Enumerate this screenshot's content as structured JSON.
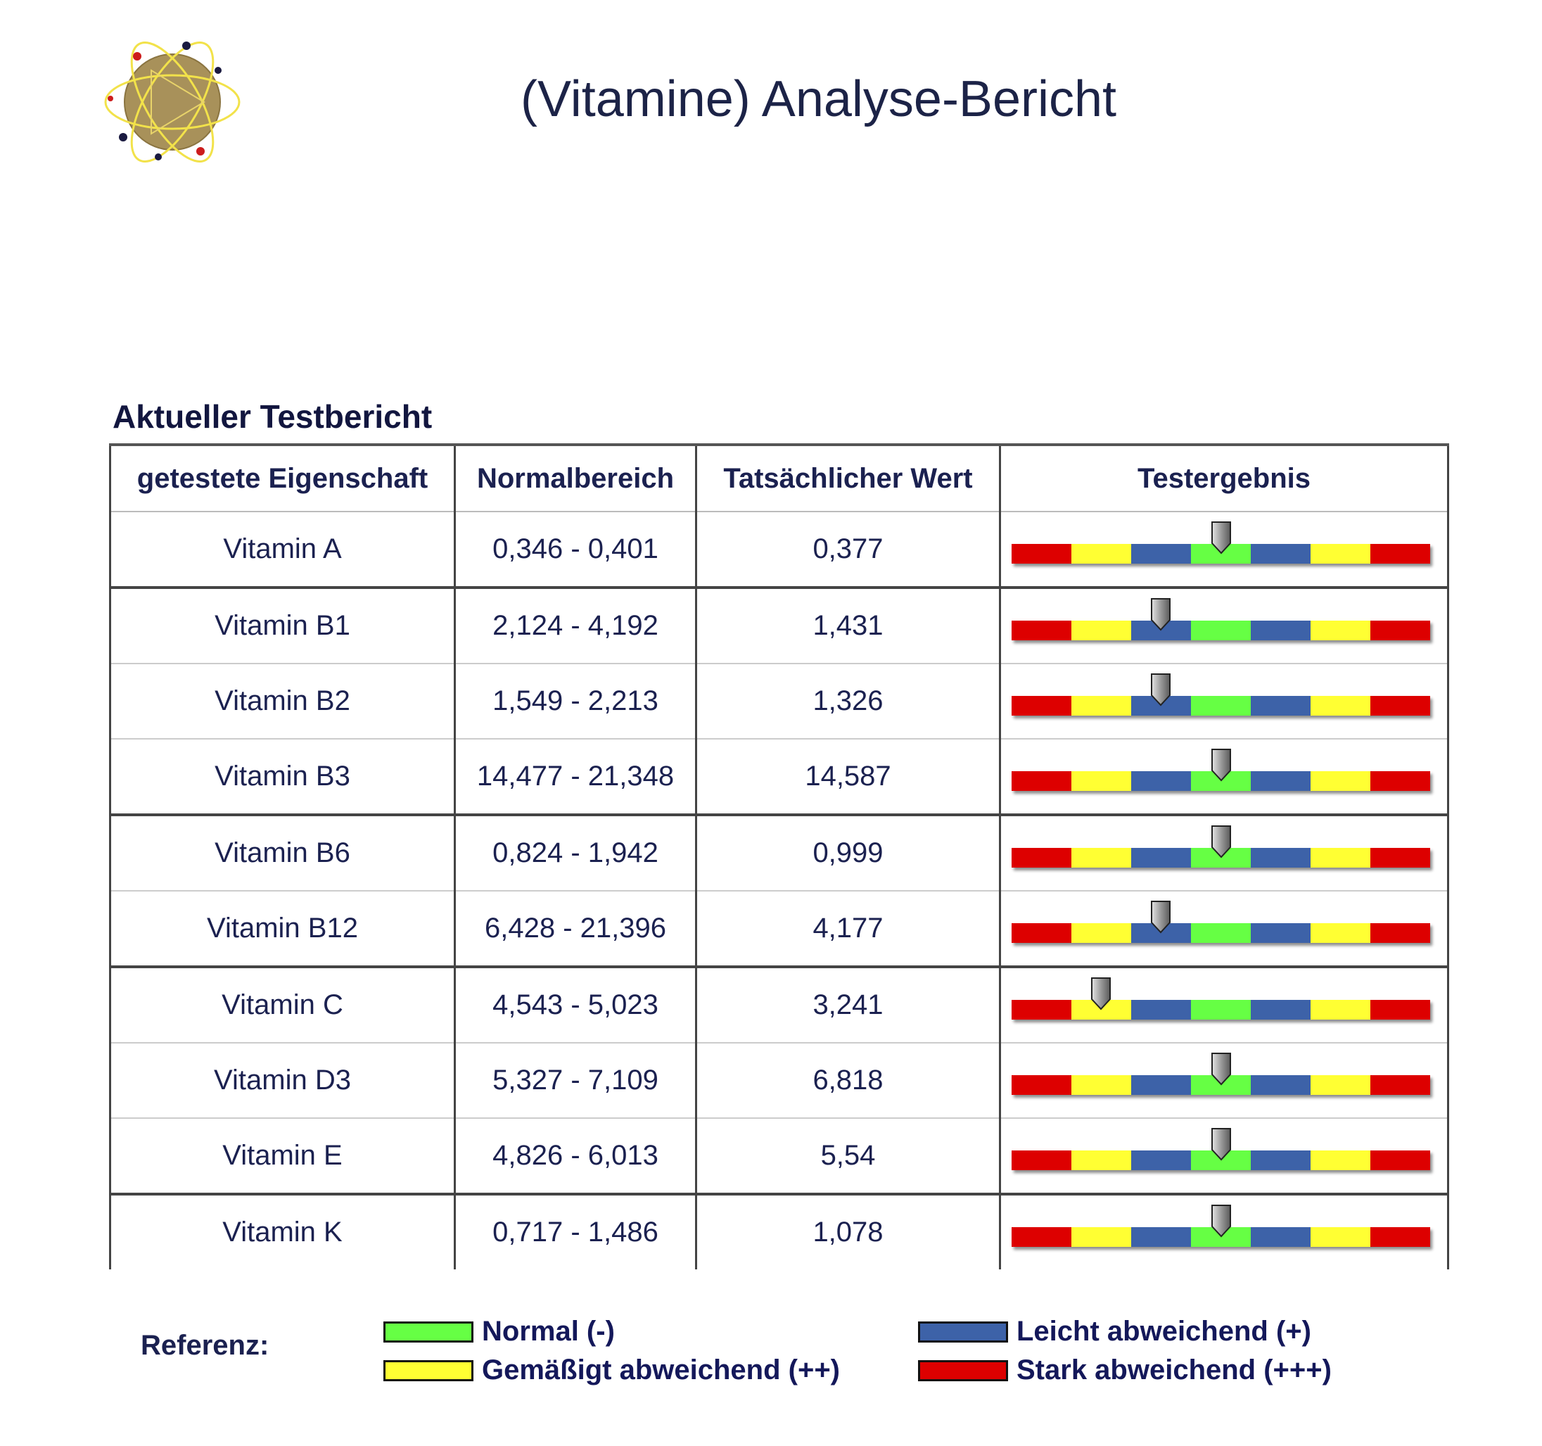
{
  "header": {
    "title": "(Vitamine) Analyse-Bericht"
  },
  "logo": {
    "icon": "atom-logo-icon"
  },
  "section": {
    "title": "Aktueller Testbericht"
  },
  "table": {
    "columns": [
      "getestete Eigenschaft",
      "Normalbereich",
      "Tatsächlicher Wert",
      "Testergebnis"
    ],
    "rows": [
      {
        "name": "Vitamin A",
        "range": "0,346 - 0,401",
        "value": "0,377",
        "level": "Normal (-)"
      },
      {
        "name": "Vitamin B1",
        "range": "2,124 - 4,192",
        "value": "1,431",
        "level": "Leicht abweichend (+)"
      },
      {
        "name": "Vitamin B2",
        "range": "1,549 - 2,213",
        "value": "1,326",
        "level": "Leicht abweichend (+)"
      },
      {
        "name": "Vitamin B3",
        "range": "14,477 - 21,348",
        "value": "14,587",
        "level": "Normal (-)"
      },
      {
        "name": "Vitamin B6",
        "range": "0,824 - 1,942",
        "value": "0,999",
        "level": "Normal (-)"
      },
      {
        "name": "Vitamin B12",
        "range": "6,428 - 21,396",
        "value": "4,177",
        "level": "Leicht abweichend (+)"
      },
      {
        "name": "Vitamin C",
        "range": "4,543 - 5,023",
        "value": "3,241",
        "level": "Gemäßigt abweichend (++)"
      },
      {
        "name": "Vitamin D3",
        "range": "5,327 - 7,109",
        "value": "6,818",
        "level": "Normal (-)"
      },
      {
        "name": "Vitamin E",
        "range": "4,826 - 6,013",
        "value": "5,54",
        "level": "Normal (-)"
      },
      {
        "name": "Vitamin K",
        "range": "0,717 - 1,486",
        "value": "1,078",
        "level": "Normal (-)"
      }
    ]
  },
  "scale_colors": {
    "red": "#dd0000",
    "yellow": "#ffff33",
    "blue": "#3d62a8",
    "green": "#66ff44"
  },
  "legend": {
    "label": "Referenz:",
    "items": [
      {
        "text": "Normal (-)",
        "color": "#66ff44"
      },
      {
        "text": "Leicht abweichend (+)",
        "color": "#3d62a8"
      },
      {
        "text": "Gemäßigt abweichend (++)",
        "color": "#ffff33"
      },
      {
        "text": "Stark abweichend (+++)",
        "color": "#dd0000"
      }
    ]
  }
}
